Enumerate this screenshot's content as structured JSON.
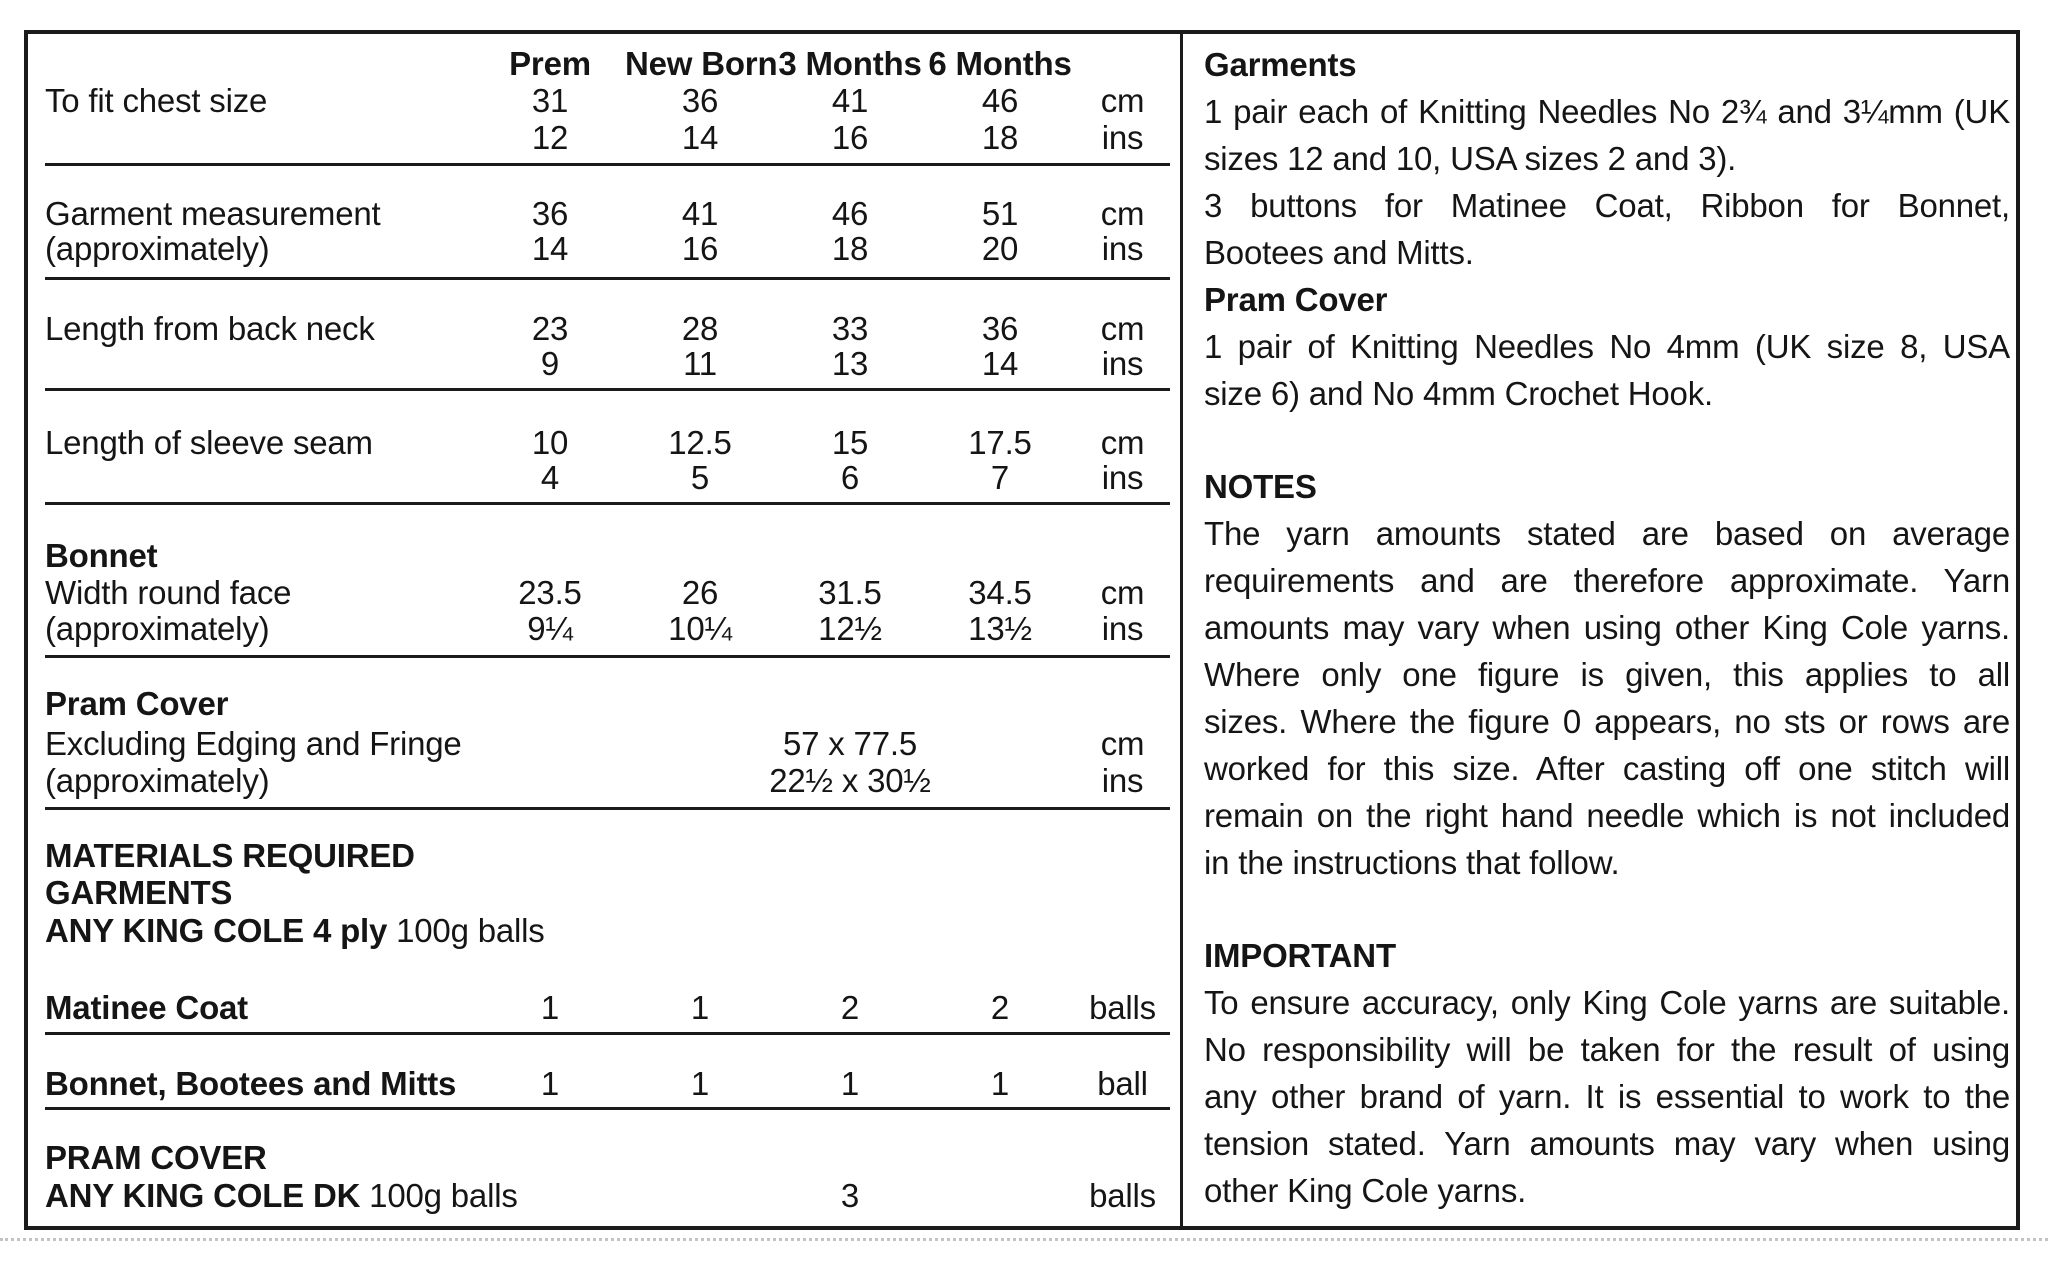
{
  "page": {
    "background": "#ffffff",
    "text_color": "#151515",
    "rule_color": "#1b1b1b",
    "dotted_rule_color": "#c3c3c3"
  },
  "sizing_table": {
    "size_headers": [
      "Prem",
      "New Born",
      "3 Months",
      "6 Months"
    ],
    "items": [
      {
        "kind": "header",
        "cells": [
          "Prem",
          "New Born",
          "3 Months",
          "6 Months"
        ]
      },
      {
        "kind": "row",
        "label": "To fit chest size",
        "values": [
          "31",
          "36",
          "41",
          "46"
        ],
        "unit": "cm"
      },
      {
        "kind": "row",
        "label": "",
        "values": [
          "12",
          "14",
          "16",
          "18"
        ],
        "unit": "ins"
      },
      {
        "kind": "divider"
      },
      {
        "kind": "row",
        "label": "Garment measurement",
        "values": [
          "36",
          "41",
          "46",
          "51"
        ],
        "unit": "cm"
      },
      {
        "kind": "row",
        "label": "(approximately)",
        "values": [
          "14",
          "16",
          "18",
          "20"
        ],
        "unit": "ins"
      },
      {
        "kind": "divider"
      },
      {
        "kind": "row",
        "label": "Length from back neck",
        "values": [
          "23",
          "28",
          "33",
          "36"
        ],
        "unit": "cm"
      },
      {
        "kind": "row",
        "label": "",
        "values": [
          "9",
          "11",
          "13",
          "14"
        ],
        "unit": "ins"
      },
      {
        "kind": "divider"
      },
      {
        "kind": "row",
        "label": "Length of sleeve seam",
        "values": [
          "10",
          "12.5",
          "15",
          "17.5"
        ],
        "unit": "cm"
      },
      {
        "kind": "row",
        "label": "",
        "values": [
          "4",
          "5",
          "6",
          "7"
        ],
        "unit": "ins"
      },
      {
        "kind": "divider"
      },
      {
        "kind": "title",
        "text": "Bonnet"
      },
      {
        "kind": "row",
        "label": "Width round face",
        "values": [
          "23.5",
          "26",
          "31.5",
          "34.5"
        ],
        "unit": "cm"
      },
      {
        "kind": "row",
        "label": "(approximately)",
        "values": [
          "9¼",
          "10¼",
          "12½",
          "13½"
        ],
        "unit": "ins"
      },
      {
        "kind": "divider"
      },
      {
        "kind": "title",
        "text": "Pram Cover"
      },
      {
        "kind": "row_span",
        "label": "Excluding Edging and Fringe",
        "span_value": "57 x 77.5",
        "unit": "cm"
      },
      {
        "kind": "row_span",
        "label": "(approximately)",
        "span_value": "22½ x 30½",
        "unit": "ins"
      },
      {
        "kind": "divider"
      },
      {
        "kind": "title",
        "text": "MATERIALS REQUIRED"
      },
      {
        "kind": "title",
        "text": "GARMENTS"
      },
      {
        "kind": "title_mixed",
        "bold": "ANY KING COLE 4 ply",
        "regular": " 100g balls"
      },
      {
        "kind": "row",
        "label": "Matinee Coat",
        "label_bold": true,
        "values": [
          "1",
          "1",
          "2",
          "2"
        ],
        "unit": "balls"
      },
      {
        "kind": "divider"
      },
      {
        "kind": "row",
        "label": "Bonnet, Bootees and Mitts",
        "label_bold": true,
        "values": [
          "1",
          "1",
          "1",
          "1"
        ],
        "unit": "ball"
      },
      {
        "kind": "divider"
      },
      {
        "kind": "title",
        "text": "PRAM COVER"
      },
      {
        "kind": "row_mixed",
        "bold": "ANY KING COLE DK",
        "regular": " 100g balls",
        "values": [
          "",
          "",
          "3",
          ""
        ],
        "unit": "balls"
      }
    ]
  },
  "info_panel": {
    "sections": [
      {
        "heading": "Garments",
        "gap_before": false,
        "paragraphs": [
          [
            "1 pair each of Knitting Needles No 2¾ and 3¼mm (UK",
            "sizes 12 and 10, USA sizes 2 and 3)."
          ],
          [
            "3 buttons for Matinee Coat, Ribbon for Bonnet,",
            "Bootees and Mitts."
          ]
        ]
      },
      {
        "heading": "Pram Cover",
        "gap_before": false,
        "paragraphs": [
          [
            "1 pair of Knitting Needles No 4mm (UK size 8, USA",
            "size 6) and No 4mm Crochet Hook."
          ]
        ]
      },
      {
        "heading": "NOTES",
        "gap_before": true,
        "paragraphs": [
          [
            "The yarn amounts stated are based on average",
            "requirements and are therefore approximate. Yarn",
            "amounts may vary when using other King Cole yarns.",
            "Where only one figure is given, this applies to all",
            "sizes. Where the figure 0 appears, no sts or rows are",
            "worked for this size. After casting off one stitch will",
            "remain on the right hand needle which is not included",
            "in the instructions that follow."
          ]
        ]
      },
      {
        "heading": "IMPORTANT",
        "gap_before": true,
        "paragraphs": [
          [
            "To ensure accuracy, only King Cole yarns are suitable.",
            "No responsibility will be taken for the result of using",
            "any other brand of yarn. It is essential to work to the",
            "tension stated. Yarn amounts may vary when using",
            "other King Cole yarns."
          ]
        ]
      }
    ]
  }
}
